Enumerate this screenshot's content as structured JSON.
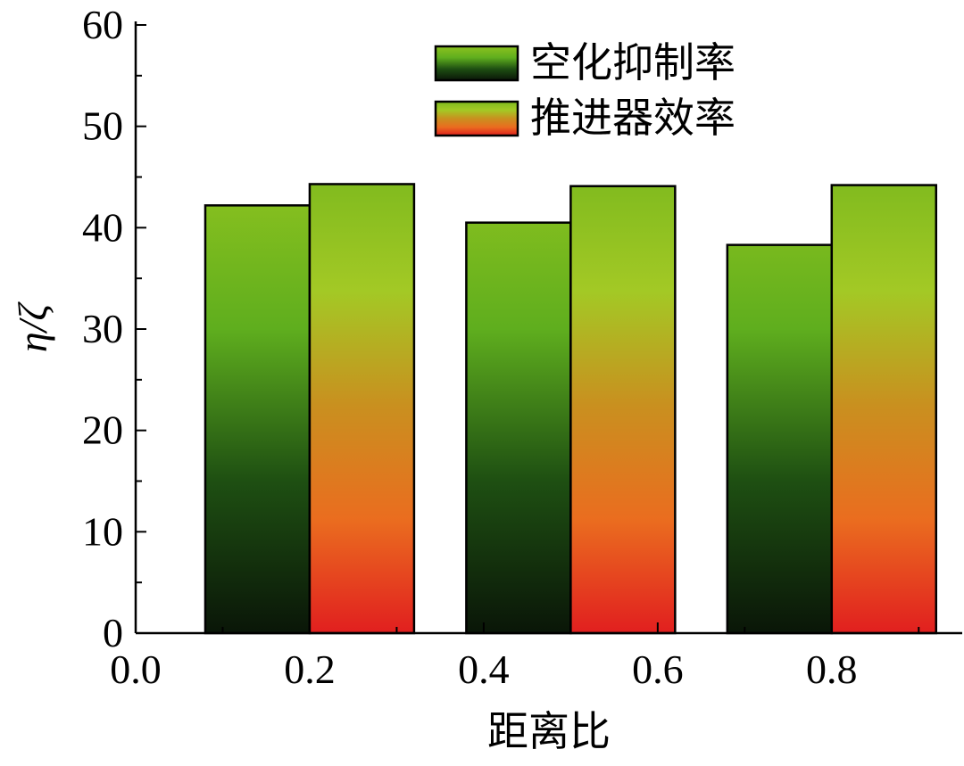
{
  "chart_data": {
    "type": "bar",
    "title": "",
    "xlabel": "距离比",
    "ylabel": "η/ζ",
    "xlim": [
      0.0,
      0.95
    ],
    "ylim": [
      0,
      60
    ],
    "xticks": [
      "0.0",
      "0.2",
      "0.4",
      "0.6",
      "0.8"
    ],
    "xtick_values": [
      0.0,
      0.2,
      0.4,
      0.6,
      0.8
    ],
    "yticks": [
      "0",
      "10",
      "20",
      "30",
      "40",
      "50",
      "60"
    ],
    "ytick_values": [
      0,
      10,
      20,
      30,
      40,
      50,
      60
    ],
    "y_minor_step": 5,
    "categories": [
      "0.2",
      "0.5",
      "0.8"
    ],
    "category_positions": [
      0.2,
      0.5,
      0.8
    ],
    "bar_width": 0.12,
    "series": [
      {
        "name": "空化抑制率",
        "values": [
          42.2,
          40.5,
          38.3
        ],
        "gradient": [
          "#8dc21f",
          "#5fae1e",
          "#1e4f12",
          "#0a1608"
        ]
      },
      {
        "name": "推进器效率",
        "values": [
          44.3,
          44.1,
          44.2
        ],
        "gradient": [
          "#7fba1e",
          "#a3c925",
          "#c9901f",
          "#ea6d1f",
          "#e11f1f"
        ]
      }
    ],
    "legend_position": "top-right",
    "grid": false
  }
}
